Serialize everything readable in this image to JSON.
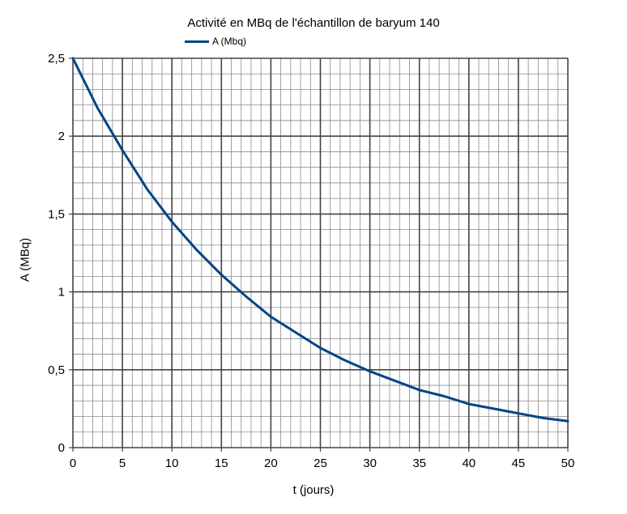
{
  "chart_data": {
    "type": "line",
    "title": "Activité en MBq de l'échantillon de baryum 140",
    "xlabel": "t (jours)",
    "ylabel": "A (MBq)",
    "xlim": [
      0,
      50
    ],
    "ylim": [
      0,
      2.5
    ],
    "x_ticks": [
      "0",
      "5",
      "10",
      "15",
      "20",
      "25",
      "30",
      "35",
      "40",
      "45",
      "50"
    ],
    "y_ticks": [
      "0",
      "0,5",
      "1",
      "1,5",
      "2",
      "2,5"
    ],
    "grid": true,
    "legend": "top-left",
    "series": [
      {
        "name": "A (Mbq)",
        "color": "#004586",
        "x": [
          0,
          2.5,
          5,
          7.5,
          10,
          12.5,
          15,
          17.5,
          20,
          22.5,
          25,
          27.5,
          30,
          32.5,
          35,
          37.5,
          40,
          42.5,
          45,
          47.5,
          50
        ],
        "y": [
          2.5,
          2.18,
          1.91,
          1.66,
          1.45,
          1.27,
          1.11,
          0.97,
          0.84,
          0.74,
          0.64,
          0.56,
          0.49,
          0.43,
          0.37,
          0.33,
          0.28,
          0.25,
          0.22,
          0.19,
          0.17
        ]
      }
    ]
  }
}
